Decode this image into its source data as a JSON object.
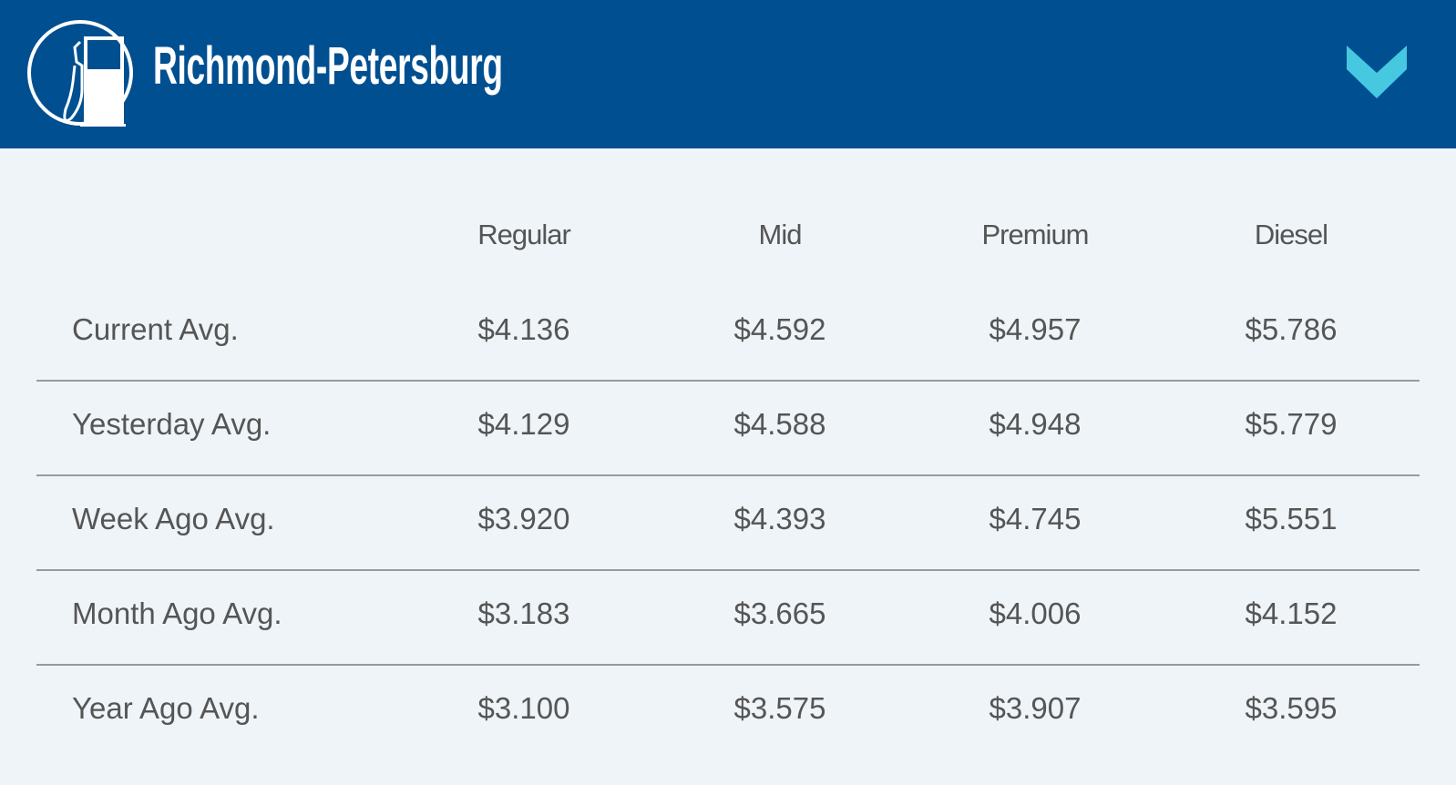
{
  "header": {
    "title": "Richmond-Petersburg",
    "icon": "gas-pump-icon",
    "toggle_icon": "chevron-down-icon",
    "colors": {
      "background": "#004f91",
      "chevron": "#45c8e0"
    }
  },
  "table": {
    "columns": [
      "Regular",
      "Mid",
      "Premium",
      "Diesel"
    ],
    "rows": [
      {
        "label": "Current Avg.",
        "values": [
          "$4.136",
          "$4.592",
          "$4.957",
          "$5.786"
        ]
      },
      {
        "label": "Yesterday Avg.",
        "values": [
          "$4.129",
          "$4.588",
          "$4.948",
          "$5.779"
        ]
      },
      {
        "label": "Week Ago Avg.",
        "values": [
          "$3.920",
          "$4.393",
          "$4.745",
          "$5.551"
        ]
      },
      {
        "label": "Month Ago Avg.",
        "values": [
          "$3.183",
          "$3.665",
          "$4.006",
          "$4.152"
        ]
      },
      {
        "label": "Year Ago Avg.",
        "values": [
          "$3.100",
          "$3.575",
          "$3.907",
          "$3.595"
        ]
      }
    ]
  }
}
